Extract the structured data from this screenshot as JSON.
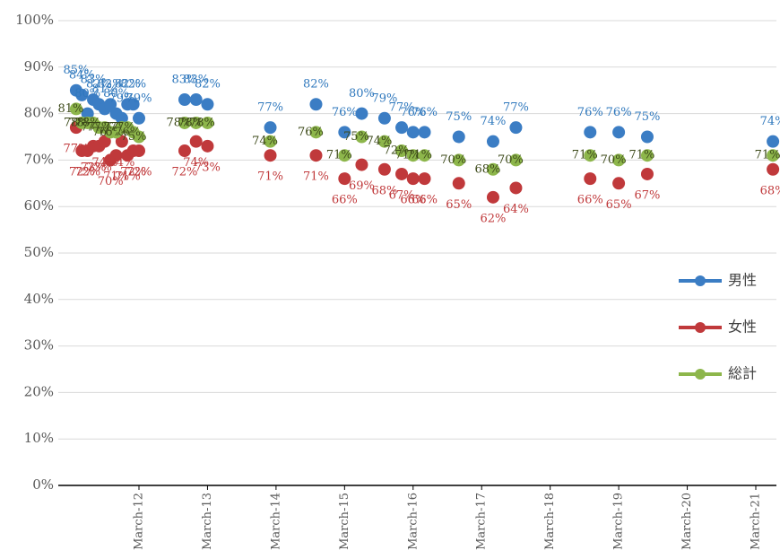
{
  "chart_data": {
    "type": "scatter",
    "x": [
      "2011-04",
      "2011-05",
      "2011-06",
      "2011-07",
      "2011-08",
      "2011-09",
      "2011-10",
      "2011-11",
      "2011-12",
      "2012-01",
      "2012-02",
      "2012-03",
      "2012-11",
      "2013-01",
      "2013-03",
      "2014-02",
      "2014-10",
      "2015-03",
      "2015-06",
      "2015-10",
      "2016-01",
      "2016-03",
      "2016-05",
      "2016-11",
      "2017-05",
      "2017-09",
      "2018-10",
      "2019-03",
      "2019-08",
      "2021-06"
    ],
    "xticks": [
      {
        "value": "2012-03",
        "label": "March-12"
      },
      {
        "value": "2013-03",
        "label": "March-13"
      },
      {
        "value": "2014-03",
        "label": "March-14"
      },
      {
        "value": "2015-03",
        "label": "March-15"
      },
      {
        "value": "2016-03",
        "label": "March-16"
      },
      {
        "value": "2017-03",
        "label": "March-17"
      },
      {
        "value": "2018-03",
        "label": "March-18"
      },
      {
        "value": "2019-03",
        "label": "March-19"
      },
      {
        "value": "2020-03",
        "label": "March-20"
      },
      {
        "value": "2021-03",
        "label": "March-21"
      }
    ],
    "ylim": [
      0,
      100
    ],
    "yticks": [
      {
        "value": 0,
        "label": "0%"
      },
      {
        "value": 10,
        "label": "10%"
      },
      {
        "value": 20,
        "label": "20%"
      },
      {
        "value": 30,
        "label": "30%"
      },
      {
        "value": 40,
        "label": "40%"
      },
      {
        "value": 50,
        "label": "50%"
      },
      {
        "value": 60,
        "label": "60%"
      },
      {
        "value": 70,
        "label": "70%"
      },
      {
        "value": 80,
        "label": "80%"
      },
      {
        "value": 90,
        "label": "90%"
      },
      {
        "value": 100,
        "label": "100%"
      }
    ],
    "grid": true,
    "legend": "right",
    "series": [
      {
        "name": "男性",
        "color": "#3b7dc4",
        "values": [
          85,
          84,
          80,
          83,
          82,
          81,
          82,
          80,
          79,
          82,
          82,
          79,
          83,
          83,
          82,
          77,
          82,
          76,
          80,
          79,
          77,
          76,
          76,
          75,
          74,
          77,
          76,
          76,
          75,
          74
        ],
        "value_labels": [
          "85%",
          "84%",
          "80%",
          "83%",
          "82%",
          "81%",
          "82%",
          "80%",
          "79%",
          "82%",
          "82%",
          "79%",
          "83%",
          "83%",
          "82%",
          "77%",
          "82%",
          "76%",
          "80%",
          "79%",
          "77%",
          "76%",
          "76%",
          "75%",
          "74%",
          "77%",
          "76%",
          "76%",
          "75%",
          "74%"
        ]
      },
      {
        "name": "女性",
        "color": "#c0393b",
        "values": [
          77,
          72,
          72,
          73,
          73,
          74,
          70,
          71,
          74,
          71,
          72,
          72,
          72,
          74,
          73,
          71,
          71,
          66,
          69,
          68,
          67,
          66,
          66,
          65,
          62,
          64,
          66,
          65,
          67,
          68
        ],
        "value_labels": [
          "77%",
          "72%",
          "72%",
          "73%",
          "73%",
          "74%",
          "70%",
          "71%",
          "74%",
          "71%",
          "72%",
          "72%",
          "72%",
          "74%",
          "73%",
          "71%",
          "71%",
          "66%",
          "69%",
          "68%",
          "67%",
          "66%",
          "66%",
          "65%",
          "62%",
          "64%",
          "66%",
          "65%",
          "67%",
          "68%"
        ]
      },
      {
        "name": "総計",
        "color": "#8db64b",
        "values": [
          81,
          78,
          78,
          78,
          77,
          77,
          76,
          76,
          77,
          77,
          76,
          75,
          78,
          78,
          78,
          74,
          76,
          71,
          75,
          74,
          72,
          71,
          71,
          70,
          68,
          70,
          71,
          70,
          71,
          71
        ],
        "value_labels": [
          "81%",
          "78%",
          "78%",
          "78%",
          "77%",
          "77%",
          "76%",
          "76%",
          "77%",
          "77%",
          "76%",
          "75%",
          "78%",
          "78%",
          "78%",
          "74%",
          "76%",
          "71%",
          "75%",
          "74%",
          "72%",
          "71%",
          "71%",
          "70%",
          "68%",
          "70%",
          "71%",
          "70%",
          "71%",
          "71%"
        ]
      }
    ]
  }
}
